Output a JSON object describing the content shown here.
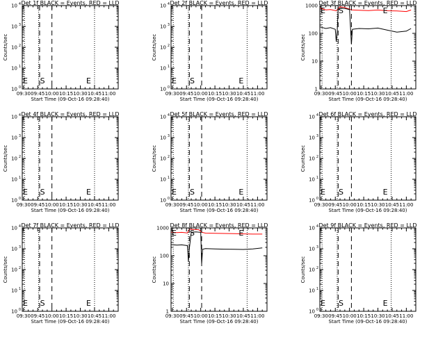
{
  "colors": {
    "events": "#000000",
    "lld": "#ff0000",
    "background": "#ffffff",
    "axes": "#000000"
  },
  "x_ticks": [
    "09:30",
    "09:45",
    "10:00",
    "10:15",
    "10:30",
    "10:45",
    "11:00"
  ],
  "x_label": "Start Time (09-Oct-16 09:28:40)",
  "y_label": "Counts/sec",
  "marker_labels": {
    "left": "E",
    "start": "S",
    "end": "E"
  },
  "chart_data": [
    {
      "type": "line",
      "title": "Det 1f BLACK = Events, RED = LLD",
      "scale": "log-empty",
      "ylim": [
        1,
        10000
      ],
      "y_ticks": [
        {
          "base": "10",
          "exp": "4"
        },
        {
          "base": "10",
          "exp": "3"
        },
        {
          "base": "10",
          "exp": "2"
        },
        {
          "base": "10",
          "exp": "1"
        },
        {
          "base": "10",
          "exp": "0"
        }
      ],
      "xlim": [
        "09:28:40",
        "11:10:00"
      ],
      "markers": {
        "left_dotted": "09:31",
        "start_dotted": "09:46",
        "dashed_1": "09:47",
        "dashed_2": "10:00",
        "end_dotted": "10:45"
      },
      "series": []
    },
    {
      "type": "line",
      "title": "Det 2f BLACK = Events, RED = LLD",
      "scale": "log-empty",
      "ylim": [
        1,
        10000
      ],
      "y_ticks": [
        {
          "base": "10",
          "exp": "4"
        },
        {
          "base": "10",
          "exp": "3"
        },
        {
          "base": "10",
          "exp": "2"
        },
        {
          "base": "10",
          "exp": "1"
        },
        {
          "base": "10",
          "exp": "0"
        }
      ],
      "xlim": [
        "09:28:40",
        "11:10:00"
      ],
      "markers": {
        "left_dotted": "09:31",
        "start_dotted": "09:47",
        "dashed_1": "09:48",
        "dashed_2": "10:01",
        "end_dotted": "10:49"
      },
      "series": []
    },
    {
      "type": "line",
      "title": "Det 3f BLACK = Events, RED = LLD",
      "scale": "log-data",
      "ylim": [
        1,
        1000
      ],
      "y_ticks": [
        {
          "base": "1000",
          "exp": ""
        },
        {
          "base": "100",
          "exp": ""
        },
        {
          "base": "10",
          "exp": ""
        },
        {
          "base": "1",
          "exp": ""
        }
      ],
      "xlim": [
        "09:28:40",
        "11:10:00"
      ],
      "markers": {
        "left_dotted": "09:31",
        "start_dotted": "09:47",
        "dashed_1": "09:48",
        "dashed_2": "10:02",
        "end_dotted": "10:44"
      },
      "series": [
        {
          "color": "#ff0000",
          "x": [
            "09:29",
            "09:35",
            "09:40",
            "09:46",
            "09:50",
            "09:55",
            "10:02",
            "10:10",
            "10:20",
            "10:30",
            "10:40",
            "10:50",
            "11:00",
            "11:05"
          ],
          "y": [
            800,
            700,
            720,
            650,
            900,
            850,
            700,
            680,
            660,
            690,
            650,
            640,
            610,
            690
          ]
        },
        {
          "color": "#000000",
          "x": [
            "09:29",
            "09:35",
            "09:40",
            "09:45",
            "09:46",
            "09:47",
            "09:48",
            "09:50",
            "09:55",
            "10:00",
            "10:02",
            "10:03",
            "10:10",
            "10:20",
            "10:30",
            "10:40",
            "10:50",
            "11:00",
            "11:05"
          ],
          "y": [
            170,
            150,
            160,
            140,
            50,
            120,
            700,
            800,
            780,
            720,
            40,
            140,
            150,
            145,
            155,
            130,
            110,
            120,
            150
          ]
        }
      ]
    },
    {
      "type": "line",
      "title": "Det 4f BLACK = Events, RED = LLD",
      "scale": "log-empty",
      "ylim": [
        1,
        10000
      ],
      "y_ticks": [
        {
          "base": "10",
          "exp": "4"
        },
        {
          "base": "10",
          "exp": "3"
        },
        {
          "base": "10",
          "exp": "2"
        },
        {
          "base": "10",
          "exp": "1"
        },
        {
          "base": "10",
          "exp": "0"
        }
      ],
      "xlim": [
        "09:28:40",
        "11:10:00"
      ],
      "markers": {
        "left_dotted": "09:31",
        "start_dotted": "09:46",
        "dashed_1": "09:47",
        "dashed_2": "10:00",
        "end_dotted": "10:45"
      },
      "series": []
    },
    {
      "type": "line",
      "title": "Det 5f BLACK = Events, RED = LLD",
      "scale": "log-empty",
      "ylim": [
        1,
        10000
      ],
      "y_ticks": [
        {
          "base": "10",
          "exp": "4"
        },
        {
          "base": "10",
          "exp": "3"
        },
        {
          "base": "10",
          "exp": "2"
        },
        {
          "base": "10",
          "exp": "1"
        },
        {
          "base": "10",
          "exp": "0"
        }
      ],
      "xlim": [
        "09:28:40",
        "11:10:00"
      ],
      "markers": {
        "left_dotted": "09:31",
        "start_dotted": "09:47",
        "dashed_1": "09:48",
        "dashed_2": "10:01",
        "end_dotted": "10:49"
      },
      "series": []
    },
    {
      "type": "line",
      "title": "Det 6f BLACK = Events, RED = LLD",
      "scale": "log-empty",
      "ylim": [
        1,
        10000
      ],
      "y_ticks": [
        {
          "base": "10",
          "exp": "4"
        },
        {
          "base": "10",
          "exp": "3"
        },
        {
          "base": "10",
          "exp": "2"
        },
        {
          "base": "10",
          "exp": "1"
        },
        {
          "base": "10",
          "exp": "0"
        }
      ],
      "xlim": [
        "09:28:40",
        "11:10:00"
      ],
      "markers": {
        "left_dotted": "09:31",
        "start_dotted": "09:47",
        "dashed_1": "09:48",
        "dashed_2": "10:02",
        "end_dotted": "10:44"
      },
      "series": []
    },
    {
      "type": "line",
      "title": "Det 7f BLACK = Events, RED = LLD",
      "scale": "log-empty",
      "ylim": [
        1,
        10000
      ],
      "y_ticks": [
        {
          "base": "10",
          "exp": "4"
        },
        {
          "base": "10",
          "exp": "3"
        },
        {
          "base": "10",
          "exp": "2"
        },
        {
          "base": "10",
          "exp": "1"
        },
        {
          "base": "10",
          "exp": "0"
        }
      ],
      "xlim": [
        "09:28:40",
        "11:10:00"
      ],
      "markers": {
        "left_dotted": "09:31",
        "start_dotted": "09:46",
        "dashed_1": "09:47",
        "dashed_2": "10:00",
        "end_dotted": "10:45"
      },
      "series": []
    },
    {
      "type": "line",
      "title": "Det 8f BLACK = Events, RED = LLD",
      "scale": "log-data",
      "ylim": [
        1,
        1000
      ],
      "y_ticks": [
        {
          "base": "1000",
          "exp": ""
        },
        {
          "base": "100",
          "exp": ""
        },
        {
          "base": "10",
          "exp": ""
        },
        {
          "base": "1",
          "exp": ""
        }
      ],
      "xlim": [
        "09:28:40",
        "11:10:00"
      ],
      "markers": {
        "left_dotted": "09:31",
        "start_dotted": "09:47",
        "dashed_1": "09:48",
        "dashed_2": "10:01",
        "end_dotted": "10:49"
      },
      "series": [
        {
          "color": "#ff0000",
          "x": [
            "09:29",
            "09:35",
            "09:40",
            "09:46",
            "09:48",
            "09:52",
            "09:58",
            "10:01",
            "10:05",
            "10:15",
            "10:25",
            "10:35",
            "10:45",
            "10:55",
            "11:05"
          ],
          "y": [
            700,
            680,
            690,
            660,
            900,
            880,
            860,
            700,
            650,
            640,
            630,
            620,
            610,
            600,
            600
          ]
        },
        {
          "color": "#000000",
          "x": [
            "09:29",
            "09:35",
            "09:40",
            "09:46",
            "09:47",
            "09:48",
            "09:50",
            "09:55",
            "10:00",
            "10:01",
            "10:02",
            "10:05",
            "10:15",
            "10:25",
            "10:35",
            "10:45",
            "10:55",
            "11:05"
          ],
          "y": [
            250,
            240,
            245,
            230,
            60,
            180,
            700,
            720,
            690,
            50,
            170,
            180,
            175,
            172,
            170,
            168,
            175,
            190
          ]
        }
      ]
    },
    {
      "type": "line",
      "title": "Det 9f BLACK = Events, RED = LLD",
      "scale": "log-empty",
      "ylim": [
        1,
        10000
      ],
      "y_ticks": [
        {
          "base": "10",
          "exp": "4"
        },
        {
          "base": "10",
          "exp": "3"
        },
        {
          "base": "10",
          "exp": "2"
        },
        {
          "base": "10",
          "exp": "1"
        },
        {
          "base": "10",
          "exp": "0"
        }
      ],
      "xlim": [
        "09:28:40",
        "11:10:00"
      ],
      "markers": {
        "left_dotted": "09:31",
        "start_dotted": "09:47",
        "dashed_1": "09:48",
        "dashed_2": "10:02",
        "end_dotted": "10:44"
      },
      "series": []
    }
  ]
}
